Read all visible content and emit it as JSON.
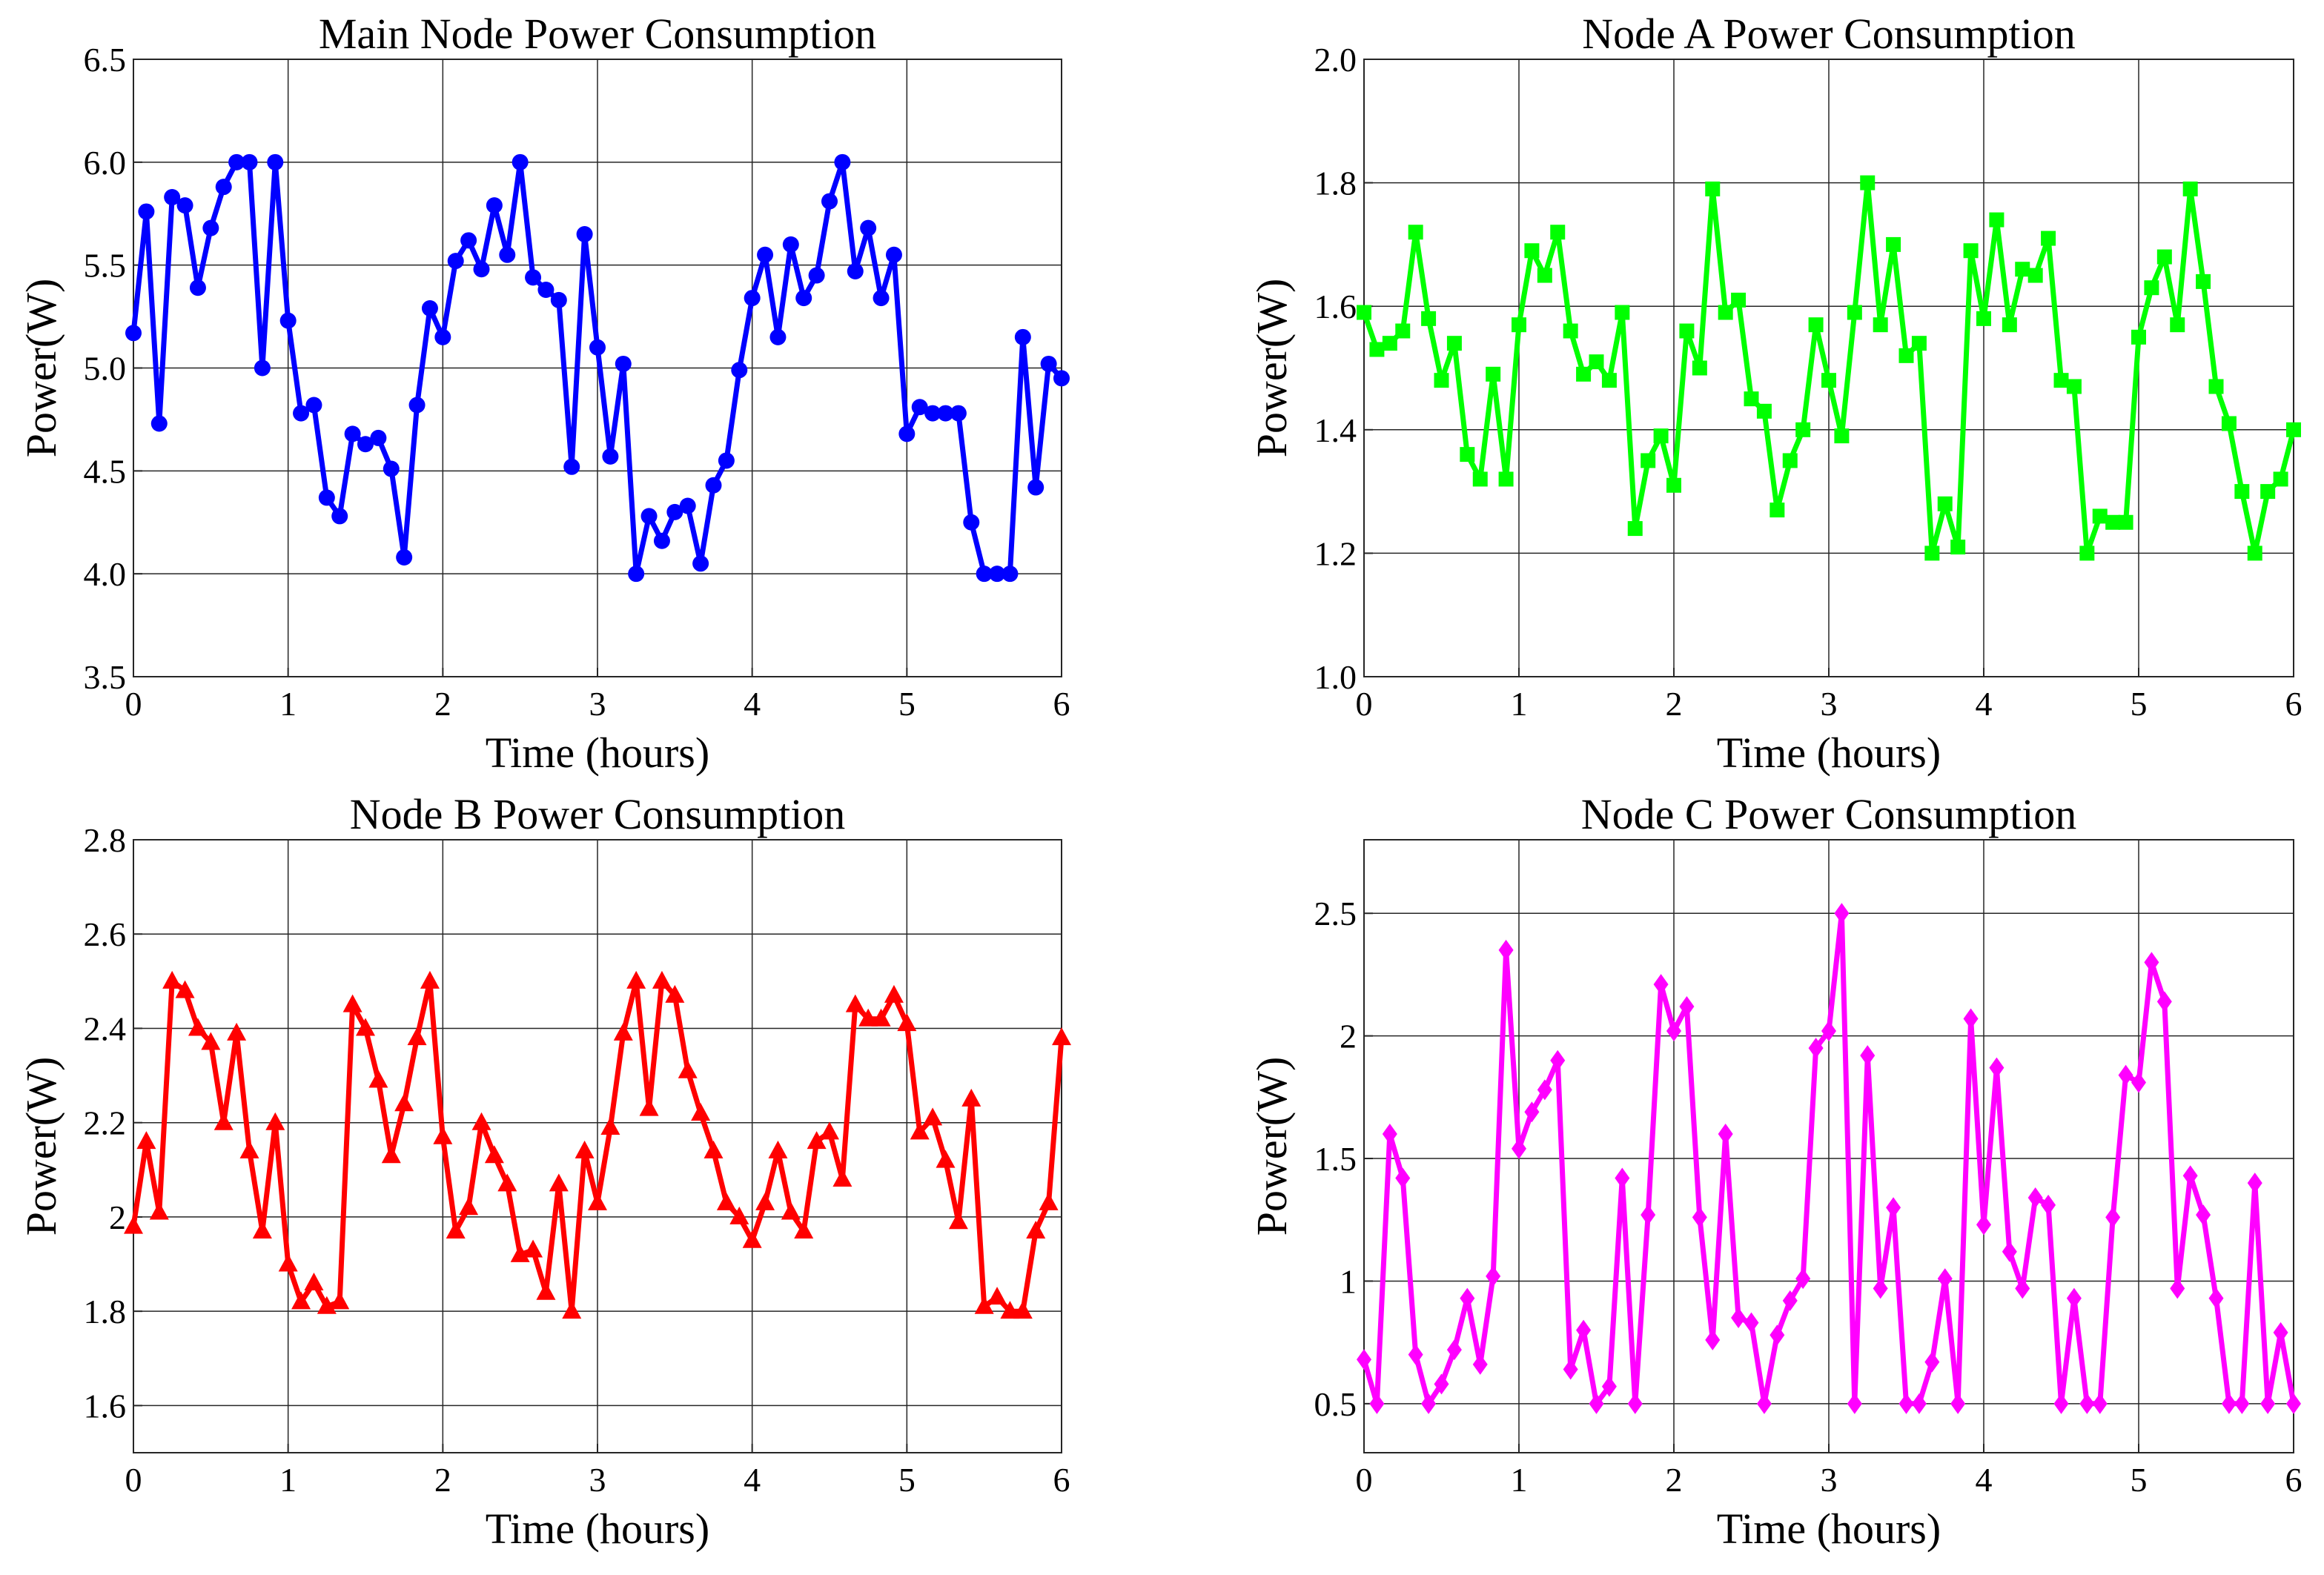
{
  "chart_data": [
    {
      "id": "main",
      "type": "line",
      "title": "Main Node Power Consumption",
      "xlabel": "Time (hours)",
      "ylabel": "Power(W)",
      "xlim": [
        0,
        6
      ],
      "ylim": [
        3.5,
        6.5
      ],
      "xticks": [
        0,
        1,
        2,
        3,
        4,
        5,
        6
      ],
      "yticks": [
        3.5,
        4.0,
        4.5,
        5.0,
        5.5,
        6.0,
        6.5
      ],
      "ytick_labels": [
        "3.5",
        "4.0",
        "4.5",
        "5.0",
        "5.5",
        "6.0",
        "6.5"
      ],
      "grid": true,
      "color": "#0000ff",
      "marker": "circle",
      "values": [
        5.17,
        5.76,
        4.73,
        5.83,
        5.79,
        5.39,
        5.68,
        5.88,
        6.0,
        6.0,
        5.0,
        6.0,
        5.23,
        4.78,
        4.82,
        4.37,
        4.28,
        4.68,
        4.63,
        4.66,
        4.51,
        4.08,
        4.82,
        5.29,
        5.15,
        5.52,
        5.62,
        5.48,
        5.79,
        5.55,
        6.0,
        5.44,
        5.38,
        5.33,
        4.52,
        5.65,
        5.1,
        4.57,
        5.02,
        4.0,
        4.28,
        4.16,
        4.3,
        4.33,
        4.05,
        4.43,
        4.55,
        4.99,
        5.34,
        5.55,
        5.15,
        5.6,
        5.34,
        5.45,
        5.81,
        6.0,
        5.47,
        5.68,
        5.34,
        5.55,
        4.68,
        4.81,
        4.78,
        4.78,
        4.78,
        4.25,
        4.0,
        4.0,
        4.0,
        5.15,
        4.42,
        5.02,
        4.95
      ]
    },
    {
      "id": "node-a",
      "type": "line",
      "title": "Node A Power Consumption",
      "xlabel": "Time (hours)",
      "ylabel": "Power(W)",
      "xlim": [
        0,
        6
      ],
      "ylim": [
        1.0,
        2.0
      ],
      "xticks": [
        0,
        1,
        2,
        3,
        4,
        5,
        6
      ],
      "yticks": [
        1.0,
        1.2,
        1.4,
        1.6,
        1.8,
        2.0
      ],
      "ytick_labels": [
        "1.0",
        "1.2",
        "1.4",
        "1.6",
        "1.8",
        "2.0"
      ],
      "grid": true,
      "color": "#00ff00",
      "marker": "square",
      "values": [
        1.59,
        1.53,
        1.54,
        1.56,
        1.72,
        1.58,
        1.48,
        1.54,
        1.36,
        1.32,
        1.49,
        1.32,
        1.57,
        1.69,
        1.65,
        1.72,
        1.56,
        1.49,
        1.51,
        1.48,
        1.59,
        1.24,
        1.35,
        1.39,
        1.31,
        1.56,
        1.5,
        1.79,
        1.59,
        1.61,
        1.45,
        1.43,
        1.27,
        1.35,
        1.4,
        1.57,
        1.48,
        1.39,
        1.59,
        1.8,
        1.57,
        1.7,
        1.52,
        1.54,
        1.2,
        1.28,
        1.21,
        1.69,
        1.58,
        1.74,
        1.57,
        1.66,
        1.65,
        1.71,
        1.48,
        1.47,
        1.2,
        1.26,
        1.25,
        1.25,
        1.55,
        1.63,
        1.68,
        1.57,
        1.79,
        1.64,
        1.47,
        1.41,
        1.3,
        1.2,
        1.3,
        1.32,
        1.4
      ]
    },
    {
      "id": "node-b",
      "type": "line",
      "title": "Node B Power Consumption",
      "xlabel": "Time (hours)",
      "ylabel": "Power(W)",
      "xlim": [
        0,
        6
      ],
      "ylim": [
        1.5,
        2.8
      ],
      "xticks": [
        0,
        1,
        2,
        3,
        4,
        5,
        6
      ],
      "yticks": [
        1.6,
        1.8,
        2.0,
        2.2,
        2.4,
        2.6,
        2.8
      ],
      "ytick_labels": [
        "1.6",
        "1.8",
        "2",
        "2.2",
        "2.4",
        "2.6",
        "2.8"
      ],
      "grid": true,
      "color": "#ff0000",
      "marker": "triangle",
      "values": [
        1.98,
        2.16,
        2.01,
        2.5,
        2.48,
        2.4,
        2.37,
        2.2,
        2.39,
        2.14,
        1.97,
        2.2,
        1.9,
        1.82,
        1.86,
        1.81,
        1.82,
        2.45,
        2.4,
        2.29,
        2.13,
        2.24,
        2.38,
        2.5,
        2.17,
        1.97,
        2.02,
        2.2,
        2.13,
        2.07,
        1.92,
        1.93,
        1.84,
        2.07,
        1.8,
        2.14,
        2.03,
        2.19,
        2.39,
        2.5,
        2.23,
        2.5,
        2.47,
        2.31,
        2.22,
        2.14,
        2.03,
        2.0,
        1.95,
        2.03,
        2.14,
        2.01,
        1.97,
        2.16,
        2.18,
        2.08,
        2.45,
        2.42,
        2.42,
        2.47,
        2.41,
        2.18,
        2.21,
        2.12,
        1.99,
        2.25,
        1.81,
        1.83,
        1.8,
        1.8,
        1.97,
        2.03,
        2.38
      ]
    },
    {
      "id": "node-c",
      "type": "line",
      "title": "Node C Power Consumption",
      "xlabel": "Time (hours)",
      "ylabel": "Power(W)",
      "xlim": [
        0,
        6
      ],
      "ylim": [
        0.3,
        2.8
      ],
      "xticks": [
        0,
        1,
        2,
        3,
        4,
        5,
        6
      ],
      "yticks": [
        0.5,
        1.0,
        1.5,
        2.0,
        2.5
      ],
      "ytick_labels": [
        "0.5",
        "1",
        "1.5",
        "2",
        "2.5"
      ],
      "grid": true,
      "color": "#ff00ff",
      "marker": "diamond",
      "values": [
        0.68,
        0.5,
        1.6,
        1.42,
        0.7,
        0.5,
        0.58,
        0.72,
        0.93,
        0.66,
        1.02,
        2.35,
        1.54,
        1.69,
        1.78,
        1.9,
        0.64,
        0.8,
        0.5,
        0.57,
        1.42,
        0.5,
        1.27,
        2.21,
        2.02,
        2.12,
        1.26,
        0.76,
        1.6,
        0.85,
        0.83,
        0.5,
        0.78,
        0.92,
        1.01,
        1.95,
        2.02,
        2.5,
        0.5,
        1.92,
        0.97,
        1.3,
        0.5,
        0.5,
        0.67,
        1.01,
        0.5,
        2.07,
        1.23,
        1.87,
        1.12,
        0.97,
        1.34,
        1.31,
        0.5,
        0.93,
        0.5,
        0.5,
        1.26,
        1.84,
        1.81,
        2.3,
        2.14,
        0.97,
        1.43,
        1.27,
        0.93,
        0.5,
        0.5,
        1.4,
        0.5,
        0.79,
        0.5
      ]
    }
  ]
}
